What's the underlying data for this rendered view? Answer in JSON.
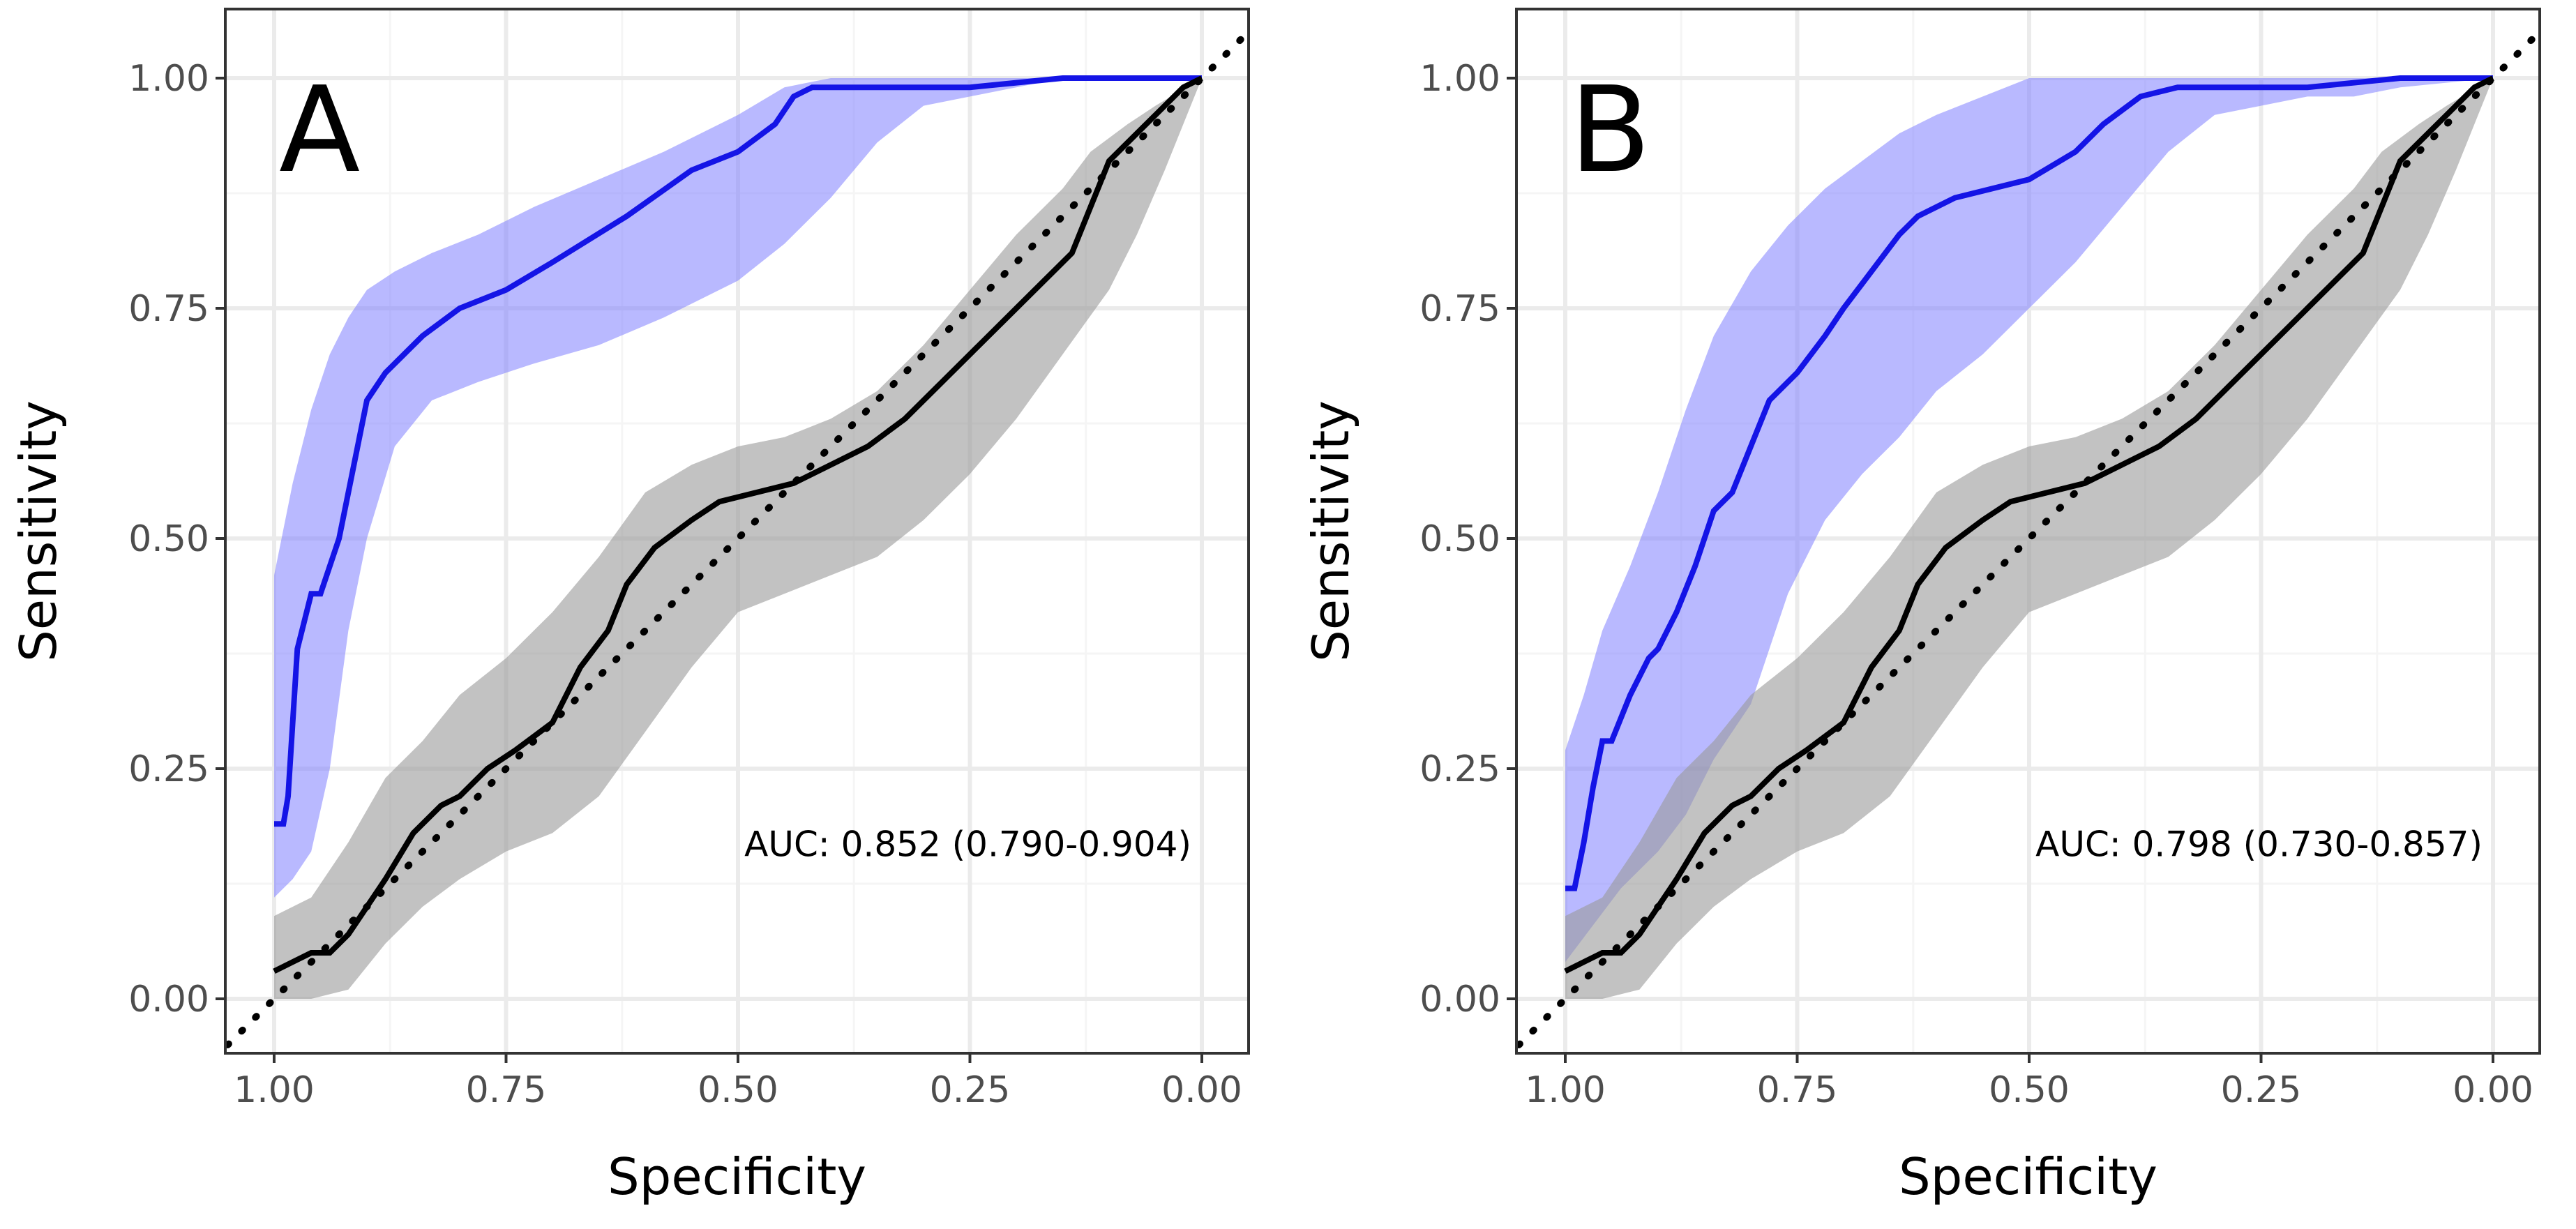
{
  "colors": {
    "model": "#1414e6",
    "model_band": "#8080ff",
    "reference": "#000000",
    "reference_band": "#999999",
    "grid_major": "#ebebeb",
    "grid_minor": "#f5f5f5",
    "panel_border": "#333333",
    "tick_text": "#4d4d4d"
  },
  "chart_data": [
    {
      "type": "line",
      "panel_label": "A",
      "xlabel": "Specificity",
      "ylabel": "Sensitivity",
      "xlim": [
        1.0,
        0.0
      ],
      "ylim": [
        0.0,
        1.0
      ],
      "x_ticks": [
        1.0,
        0.75,
        0.5,
        0.25,
        0.0
      ],
      "x_tick_labels": [
        "1.00",
        "0.75",
        "0.50",
        "0.25",
        "0.00"
      ],
      "y_ticks": [
        0.0,
        0.25,
        0.5,
        0.75,
        1.0
      ],
      "y_tick_labels": [
        "0.00",
        "0.25",
        "0.50",
        "0.75",
        "1.00"
      ],
      "grid": true,
      "annotation": "AUC: 0.852 (0.790-0.904)",
      "series": [
        {
          "name": "model ROC",
          "color": "#1414e6",
          "x": [
            1.0,
            0.99,
            0.985,
            0.98,
            0.975,
            0.96,
            0.95,
            0.93,
            0.91,
            0.9,
            0.88,
            0.86,
            0.84,
            0.8,
            0.75,
            0.7,
            0.62,
            0.55,
            0.5,
            0.46,
            0.44,
            0.42,
            0.38,
            0.3,
            0.25,
            0.2,
            0.15,
            0.1,
            0.0
          ],
          "y": [
            0.19,
            0.19,
            0.22,
            0.3,
            0.38,
            0.44,
            0.44,
            0.5,
            0.6,
            0.65,
            0.68,
            0.7,
            0.72,
            0.75,
            0.77,
            0.8,
            0.85,
            0.9,
            0.92,
            0.95,
            0.98,
            0.99,
            0.99,
            0.99,
            0.99,
            0.995,
            1.0,
            1.0,
            1.0
          ]
        },
        {
          "name": "model 95% CI lower",
          "role": "band_lower",
          "color": "#8080ff",
          "x": [
            1.0,
            0.98,
            0.96,
            0.94,
            0.92,
            0.9,
            0.87,
            0.83,
            0.78,
            0.72,
            0.65,
            0.58,
            0.5,
            0.45,
            0.4,
            0.35,
            0.3,
            0.25,
            0.2,
            0.15,
            0.1,
            0.0
          ],
          "y": [
            0.11,
            0.13,
            0.16,
            0.25,
            0.4,
            0.5,
            0.6,
            0.65,
            0.67,
            0.69,
            0.71,
            0.74,
            0.78,
            0.82,
            0.87,
            0.93,
            0.97,
            0.98,
            0.99,
            1.0,
            1.0,
            1.0
          ]
        },
        {
          "name": "model 95% CI upper",
          "role": "band_upper",
          "color": "#8080ff",
          "x": [
            1.0,
            0.98,
            0.96,
            0.94,
            0.92,
            0.9,
            0.87,
            0.83,
            0.78,
            0.72,
            0.65,
            0.58,
            0.5,
            0.45,
            0.4,
            0.35,
            0.3,
            0.25,
            0.2,
            0.15,
            0.1,
            0.0
          ],
          "y": [
            0.46,
            0.56,
            0.64,
            0.7,
            0.74,
            0.77,
            0.79,
            0.81,
            0.83,
            0.86,
            0.89,
            0.92,
            0.96,
            0.99,
            1.0,
            1.0,
            1.0,
            1.0,
            1.0,
            1.0,
            1.0,
            1.0
          ]
        },
        {
          "name": "reference ROC",
          "color": "#000000",
          "x": [
            1.0,
            0.98,
            0.96,
            0.94,
            0.92,
            0.9,
            0.88,
            0.85,
            0.82,
            0.8,
            0.77,
            0.74,
            0.7,
            0.67,
            0.64,
            0.62,
            0.59,
            0.55,
            0.52,
            0.48,
            0.44,
            0.4,
            0.36,
            0.32,
            0.28,
            0.24,
            0.2,
            0.17,
            0.14,
            0.12,
            0.1,
            0.08,
            0.05,
            0.02,
            0.0
          ],
          "y": [
            0.03,
            0.04,
            0.05,
            0.05,
            0.07,
            0.1,
            0.13,
            0.18,
            0.21,
            0.22,
            0.25,
            0.27,
            0.3,
            0.36,
            0.4,
            0.45,
            0.49,
            0.52,
            0.54,
            0.55,
            0.56,
            0.58,
            0.6,
            0.63,
            0.67,
            0.71,
            0.75,
            0.78,
            0.81,
            0.86,
            0.91,
            0.93,
            0.96,
            0.99,
            1.0
          ]
        },
        {
          "name": "reference 95% CI lower",
          "role": "band_lower",
          "color": "#999999",
          "x": [
            1.0,
            0.96,
            0.92,
            0.88,
            0.84,
            0.8,
            0.75,
            0.7,
            0.65,
            0.6,
            0.55,
            0.5,
            0.45,
            0.4,
            0.35,
            0.3,
            0.25,
            0.2,
            0.15,
            0.1,
            0.07,
            0.04,
            0.0
          ],
          "y": [
            0.0,
            0.0,
            0.01,
            0.06,
            0.1,
            0.13,
            0.16,
            0.18,
            0.22,
            0.29,
            0.36,
            0.42,
            0.44,
            0.46,
            0.48,
            0.52,
            0.57,
            0.63,
            0.7,
            0.77,
            0.83,
            0.9,
            1.0
          ]
        },
        {
          "name": "reference 95% CI upper",
          "role": "band_upper",
          "color": "#999999",
          "x": [
            1.0,
            0.96,
            0.92,
            0.88,
            0.84,
            0.8,
            0.75,
            0.7,
            0.65,
            0.6,
            0.55,
            0.5,
            0.45,
            0.4,
            0.35,
            0.3,
            0.25,
            0.2,
            0.15,
            0.12,
            0.08,
            0.05,
            0.0
          ],
          "y": [
            0.09,
            0.11,
            0.17,
            0.24,
            0.28,
            0.33,
            0.37,
            0.42,
            0.48,
            0.55,
            0.58,
            0.6,
            0.61,
            0.63,
            0.66,
            0.71,
            0.77,
            0.83,
            0.88,
            0.92,
            0.95,
            0.97,
            1.0
          ]
        },
        {
          "name": "chance diagonal",
          "style": "dotted",
          "color": "#000000",
          "x": [
            1.05,
            -0.05
          ],
          "y": [
            -0.05,
            1.05
          ]
        }
      ]
    },
    {
      "type": "line",
      "panel_label": "B",
      "xlabel": "Specificity",
      "ylabel": "Sensitivity",
      "xlim": [
        1.0,
        0.0
      ],
      "ylim": [
        0.0,
        1.0
      ],
      "x_ticks": [
        1.0,
        0.75,
        0.5,
        0.25,
        0.0
      ],
      "x_tick_labels": [
        "1.00",
        "0.75",
        "0.50",
        "0.25",
        "0.00"
      ],
      "y_ticks": [
        0.0,
        0.25,
        0.5,
        0.75,
        1.0
      ],
      "y_tick_labels": [
        "0.00",
        "0.25",
        "0.50",
        "0.75",
        "1.00"
      ],
      "grid": true,
      "annotation": "AUC: 0.798 (0.730-0.857)",
      "series": [
        {
          "name": "model ROC",
          "color": "#1414e6",
          "x": [
            1.0,
            0.99,
            0.98,
            0.97,
            0.96,
            0.95,
            0.93,
            0.91,
            0.9,
            0.88,
            0.86,
            0.84,
            0.82,
            0.8,
            0.78,
            0.75,
            0.72,
            0.7,
            0.67,
            0.64,
            0.62,
            0.58,
            0.5,
            0.45,
            0.42,
            0.38,
            0.34,
            0.3,
            0.2,
            0.1,
            0.0
          ],
          "y": [
            0.12,
            0.12,
            0.17,
            0.23,
            0.28,
            0.28,
            0.33,
            0.37,
            0.38,
            0.42,
            0.47,
            0.53,
            0.55,
            0.6,
            0.65,
            0.68,
            0.72,
            0.75,
            0.79,
            0.83,
            0.85,
            0.87,
            0.89,
            0.92,
            0.95,
            0.98,
            0.99,
            0.99,
            0.99,
            1.0,
            1.0
          ]
        },
        {
          "name": "model 95% CI lower",
          "role": "band_lower",
          "color": "#8080ff",
          "x": [
            1.0,
            0.97,
            0.94,
            0.9,
            0.87,
            0.84,
            0.8,
            0.76,
            0.72,
            0.68,
            0.64,
            0.6,
            0.55,
            0.5,
            0.45,
            0.4,
            0.35,
            0.3,
            0.25,
            0.2,
            0.15,
            0.1,
            0.0
          ],
          "y": [
            0.04,
            0.08,
            0.12,
            0.16,
            0.2,
            0.26,
            0.32,
            0.44,
            0.52,
            0.57,
            0.61,
            0.66,
            0.7,
            0.75,
            0.8,
            0.86,
            0.92,
            0.96,
            0.97,
            0.98,
            0.98,
            0.99,
            1.0
          ]
        },
        {
          "name": "model 95% CI upper",
          "role": "band_upper",
          "color": "#8080ff",
          "x": [
            1.0,
            0.98,
            0.96,
            0.93,
            0.9,
            0.87,
            0.84,
            0.8,
            0.76,
            0.72,
            0.68,
            0.64,
            0.6,
            0.55,
            0.5,
            0.45,
            0.4,
            0.35,
            0.3,
            0.25,
            0.2,
            0.1,
            0.0
          ],
          "y": [
            0.27,
            0.33,
            0.4,
            0.47,
            0.55,
            0.64,
            0.72,
            0.79,
            0.84,
            0.88,
            0.91,
            0.94,
            0.96,
            0.98,
            1.0,
            1.0,
            1.0,
            1.0,
            1.0,
            1.0,
            1.0,
            1.0,
            1.0
          ]
        },
        {
          "name": "reference ROC",
          "color": "#000000",
          "x": [
            1.0,
            0.98,
            0.96,
            0.94,
            0.92,
            0.9,
            0.88,
            0.85,
            0.82,
            0.8,
            0.77,
            0.74,
            0.7,
            0.67,
            0.64,
            0.62,
            0.59,
            0.55,
            0.52,
            0.48,
            0.44,
            0.4,
            0.36,
            0.32,
            0.28,
            0.24,
            0.2,
            0.17,
            0.14,
            0.12,
            0.1,
            0.08,
            0.05,
            0.02,
            0.0
          ],
          "y": [
            0.03,
            0.04,
            0.05,
            0.05,
            0.07,
            0.1,
            0.13,
            0.18,
            0.21,
            0.22,
            0.25,
            0.27,
            0.3,
            0.36,
            0.4,
            0.45,
            0.49,
            0.52,
            0.54,
            0.55,
            0.56,
            0.58,
            0.6,
            0.63,
            0.67,
            0.71,
            0.75,
            0.78,
            0.81,
            0.86,
            0.91,
            0.93,
            0.96,
            0.99,
            1.0
          ]
        },
        {
          "name": "reference 95% CI lower",
          "role": "band_lower",
          "color": "#999999",
          "x": [
            1.0,
            0.96,
            0.92,
            0.88,
            0.84,
            0.8,
            0.75,
            0.7,
            0.65,
            0.6,
            0.55,
            0.5,
            0.45,
            0.4,
            0.35,
            0.3,
            0.25,
            0.2,
            0.15,
            0.1,
            0.07,
            0.04,
            0.0
          ],
          "y": [
            0.0,
            0.0,
            0.01,
            0.06,
            0.1,
            0.13,
            0.16,
            0.18,
            0.22,
            0.29,
            0.36,
            0.42,
            0.44,
            0.46,
            0.48,
            0.52,
            0.57,
            0.63,
            0.7,
            0.77,
            0.83,
            0.9,
            1.0
          ]
        },
        {
          "name": "reference 95% CI upper",
          "role": "band_upper",
          "color": "#999999",
          "x": [
            1.0,
            0.96,
            0.92,
            0.88,
            0.84,
            0.8,
            0.75,
            0.7,
            0.65,
            0.6,
            0.55,
            0.5,
            0.45,
            0.4,
            0.35,
            0.3,
            0.25,
            0.2,
            0.15,
            0.12,
            0.08,
            0.05,
            0.0
          ],
          "y": [
            0.09,
            0.11,
            0.17,
            0.24,
            0.28,
            0.33,
            0.37,
            0.42,
            0.48,
            0.55,
            0.58,
            0.6,
            0.61,
            0.63,
            0.66,
            0.71,
            0.77,
            0.83,
            0.88,
            0.92,
            0.95,
            0.97,
            1.0
          ]
        },
        {
          "name": "chance diagonal",
          "style": "dotted",
          "color": "#000000",
          "x": [
            1.05,
            -0.05
          ],
          "y": [
            -0.05,
            1.05
          ]
        }
      ]
    }
  ]
}
